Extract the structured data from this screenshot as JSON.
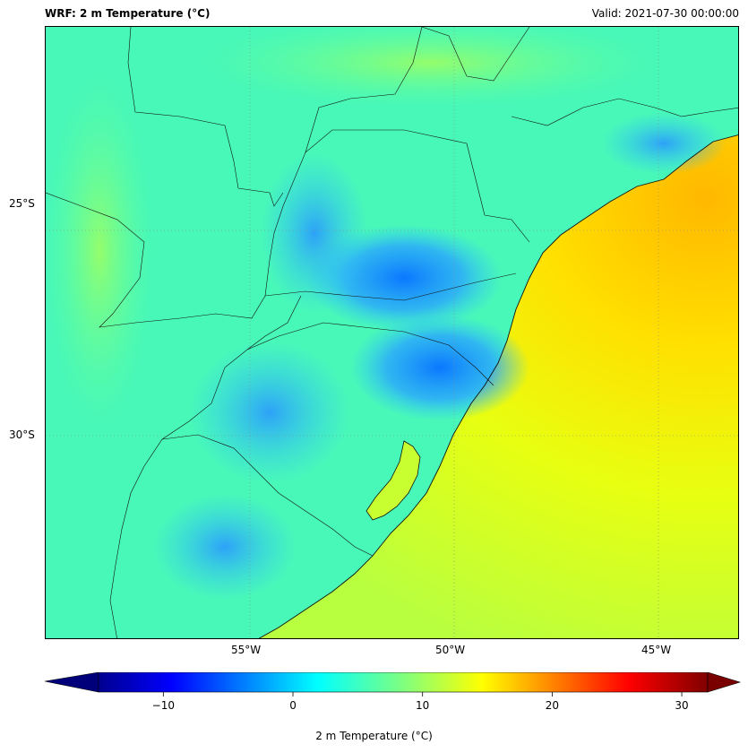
{
  "header": {
    "title": "WRF: 2 m Temperature (°C)",
    "valid": "Valid: 2021-07-30 00:00:00"
  },
  "map": {
    "lat_ticks": [
      "25°S",
      "30°S"
    ],
    "lon_ticks": [
      "55°W",
      "50°W",
      "45°W"
    ],
    "extent": {
      "lon": [
        -60,
        -43
      ],
      "lat": [
        -35,
        -20
      ]
    },
    "ocean_color": "#f3f000",
    "land_color": "#3ff8c0"
  },
  "colorbar": {
    "label": "2 m Temperature (°C)",
    "ticks": [
      "−10",
      "0",
      "10",
      "20",
      "30"
    ],
    "tick_values": [
      -10,
      0,
      10,
      20,
      30
    ],
    "range": [
      -15,
      32
    ],
    "colormap": "jet",
    "extend": "both"
  }
}
